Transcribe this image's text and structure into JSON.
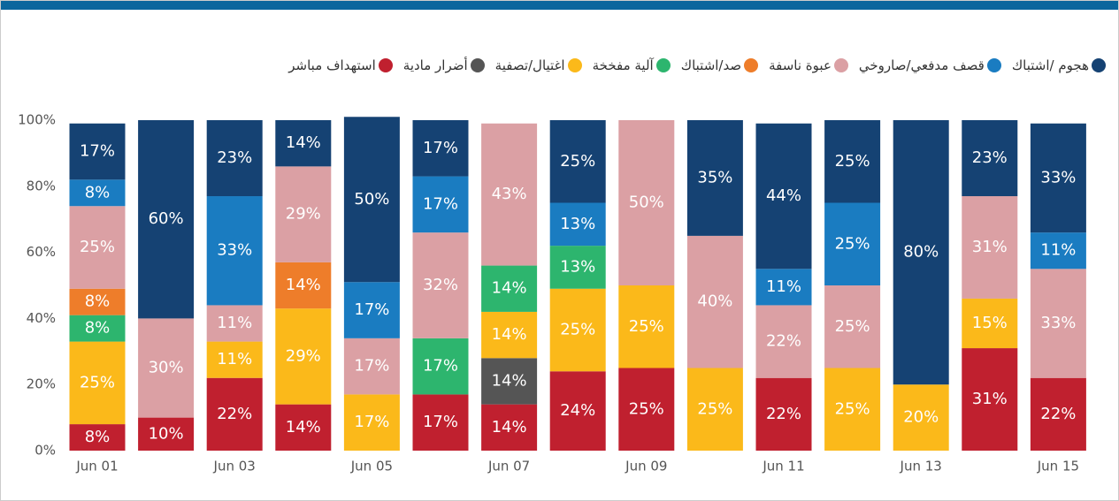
{
  "chart_data": {
    "type": "stacked_bar",
    "categories": [
      "Jun 01",
      null,
      "Jun 03",
      null,
      "Jun 05",
      null,
      "Jun 07",
      null,
      "Jun 09",
      null,
      "Jun 11",
      null,
      "Jun 13",
      null,
      "Jun 15"
    ],
    "series": [
      {
        "name": "هجوم /اشتباك",
        "color": "#154273",
        "values": [
          17,
          60,
          23,
          14,
          50,
          17,
          null,
          25,
          null,
          35,
          44,
          25,
          80,
          23,
          33
        ],
        "value_labels": [
          "17%",
          "60%",
          "23%",
          "14%",
          "50%",
          "17%",
          null,
          "25%",
          null,
          "35%",
          "44%",
          "25%",
          "80%",
          "23%",
          "33%"
        ]
      },
      {
        "name": "قصف مدفعي/صاروخي",
        "color": "#1a7cc1",
        "values": [
          8,
          null,
          33,
          null,
          17,
          17,
          null,
          13,
          null,
          null,
          11,
          25,
          null,
          null,
          11
        ],
        "value_labels": [
          "8%",
          null,
          "33%",
          null,
          "17%",
          "17%",
          null,
          "13%",
          null,
          null,
          "11%",
          "25%",
          null,
          null,
          "11%"
        ]
      },
      {
        "name": "عبوة ناسفة",
        "color": "#dba0a4",
        "values": [
          25,
          30,
          11,
          29,
          17,
          32,
          43,
          null,
          50,
          40,
          22,
          25,
          null,
          31,
          33
        ],
        "value_labels": [
          "25%",
          "30%",
          "11%",
          "29%",
          "17%",
          "32%",
          "43%",
          null,
          "50%",
          "40%",
          "22%",
          "25%",
          null,
          "31%",
          "33%"
        ]
      },
      {
        "name": "صد/اشتباك",
        "color": "#ee7d2a",
        "values": [
          8,
          null,
          null,
          14,
          null,
          null,
          null,
          null,
          null,
          null,
          null,
          null,
          null,
          null,
          null
        ],
        "value_labels": [
          "8%",
          null,
          null,
          "14%",
          null,
          null,
          null,
          null,
          null,
          null,
          null,
          null,
          null,
          null,
          null
        ]
      },
      {
        "name": "آلية مفخخة",
        "color": "#2db56e",
        "values": [
          8,
          null,
          null,
          null,
          null,
          17,
          14,
          13,
          null,
          null,
          null,
          null,
          null,
          null,
          null
        ],
        "value_labels": [
          "8%",
          null,
          null,
          null,
          null,
          "17%",
          "14%",
          "13%",
          null,
          null,
          null,
          null,
          null,
          null,
          null
        ]
      },
      {
        "name": "اغتيال/تصفية",
        "color": "#fbb91a",
        "values": [
          25,
          null,
          11,
          29,
          17,
          null,
          14,
          25,
          25,
          25,
          null,
          25,
          20,
          15,
          null
        ],
        "value_labels": [
          "25%",
          null,
          "11%",
          "29%",
          "17%",
          null,
          "14%",
          "25%",
          "25%",
          "25%",
          null,
          "25%",
          "20%",
          "15%",
          null
        ]
      },
      {
        "name": "أضرار مادية",
        "color": "#555555",
        "values": [
          null,
          null,
          null,
          null,
          null,
          null,
          14,
          null,
          null,
          null,
          null,
          null,
          null,
          null,
          null
        ],
        "value_labels": [
          null,
          null,
          null,
          null,
          null,
          null,
          "14%",
          null,
          null,
          null,
          null,
          null,
          null,
          null,
          null
        ]
      },
      {
        "name": "استهداف مباشر",
        "color": "#c0202f",
        "values": [
          8,
          10,
          22,
          14,
          null,
          17,
          14,
          24,
          25,
          null,
          22,
          null,
          null,
          31,
          22
        ],
        "value_labels": [
          "8%",
          "10%",
          "22%",
          "14%",
          null,
          "17%",
          "14%",
          "24%",
          "25%",
          null,
          "22%",
          null,
          null,
          "31%",
          "22%"
        ]
      }
    ],
    "ylim": [
      0,
      100
    ],
    "yticks": [
      {
        "value": 0,
        "label": "0%"
      },
      {
        "value": 20,
        "label": "20%"
      },
      {
        "value": 40,
        "label": "40%"
      },
      {
        "value": 60,
        "label": "60%"
      },
      {
        "value": 80,
        "label": "80%"
      },
      {
        "value": 100,
        "label": "100%"
      }
    ]
  }
}
